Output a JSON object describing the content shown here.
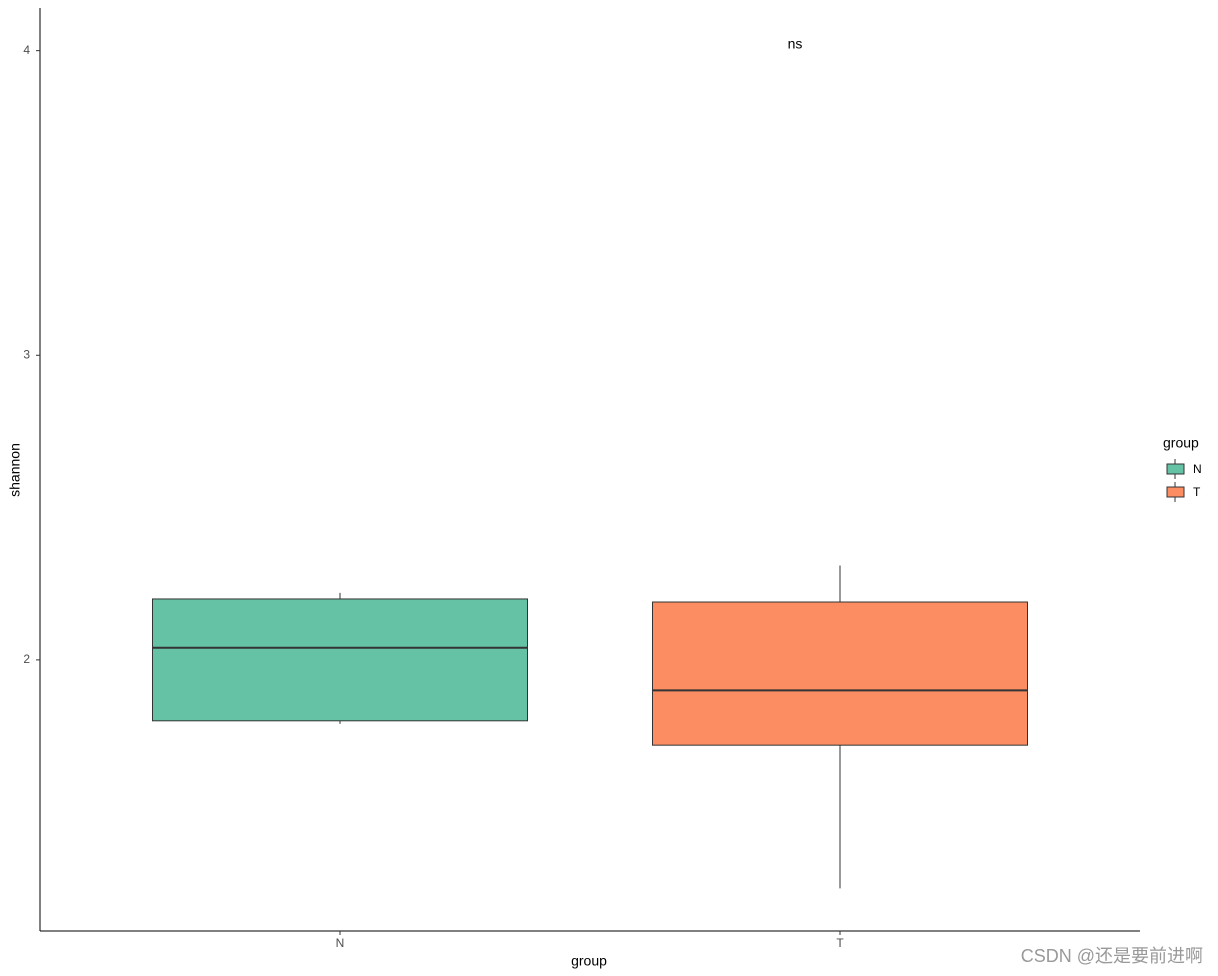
{
  "chart_data": {
    "type": "box",
    "x_label": "group",
    "y_label": "shannon",
    "annotation": "ns",
    "legend_title": "group",
    "watermark": "CSDN @还是要前进啊",
    "categories": [
      "N",
      "T"
    ],
    "colors": [
      "#66c2a5",
      "#fc8d62"
    ],
    "whisker_low": [
      1.79,
      1.25
    ],
    "q1": [
      1.8,
      1.72
    ],
    "median": [
      2.04,
      1.9
    ],
    "q3": [
      2.2,
      2.19
    ],
    "whisker_high": [
      2.22,
      2.31
    ],
    "ylim": [
      1.11,
      4.14
    ],
    "yticks": [
      2,
      3,
      4
    ],
    "grid": false
  }
}
